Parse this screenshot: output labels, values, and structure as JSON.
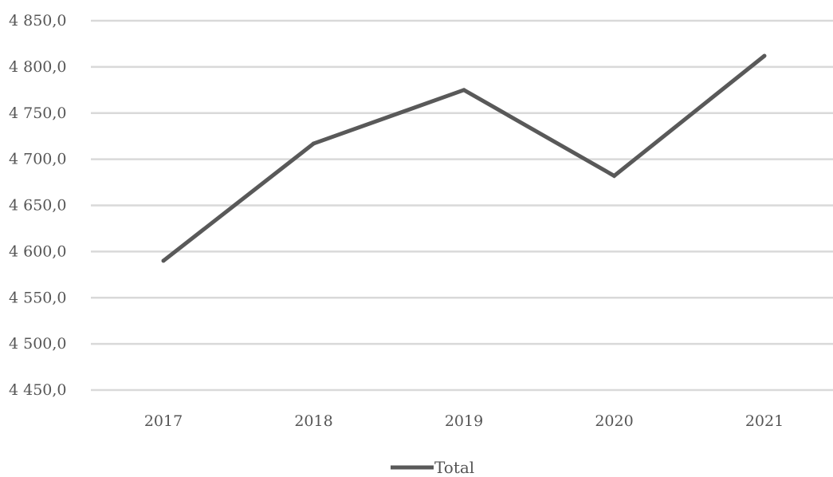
{
  "chart_data": {
    "type": "line",
    "title": "",
    "xlabel": "",
    "ylabel": "",
    "categories": [
      "2017",
      "2018",
      "2019",
      "2020",
      "2021"
    ],
    "series": [
      {
        "name": "Total",
        "values": [
          4590,
          4717,
          4775,
          4682,
          4812
        ],
        "color": "#595959"
      }
    ],
    "ylim": [
      4450,
      4850
    ],
    "y_ticks": [
      4450,
      4500,
      4550,
      4600,
      4650,
      4700,
      4750,
      4800,
      4850
    ],
    "y_tick_labels": [
      "4 450,0",
      "4 500,0",
      "4 550,0",
      "4 600,0",
      "4 650,0",
      "4 700,0",
      "4 750,0",
      "4 800,0",
      "4 850,0"
    ],
    "grid": "horizontal",
    "gridline_color": "#d9d9d9",
    "legend_position": "bottom"
  }
}
